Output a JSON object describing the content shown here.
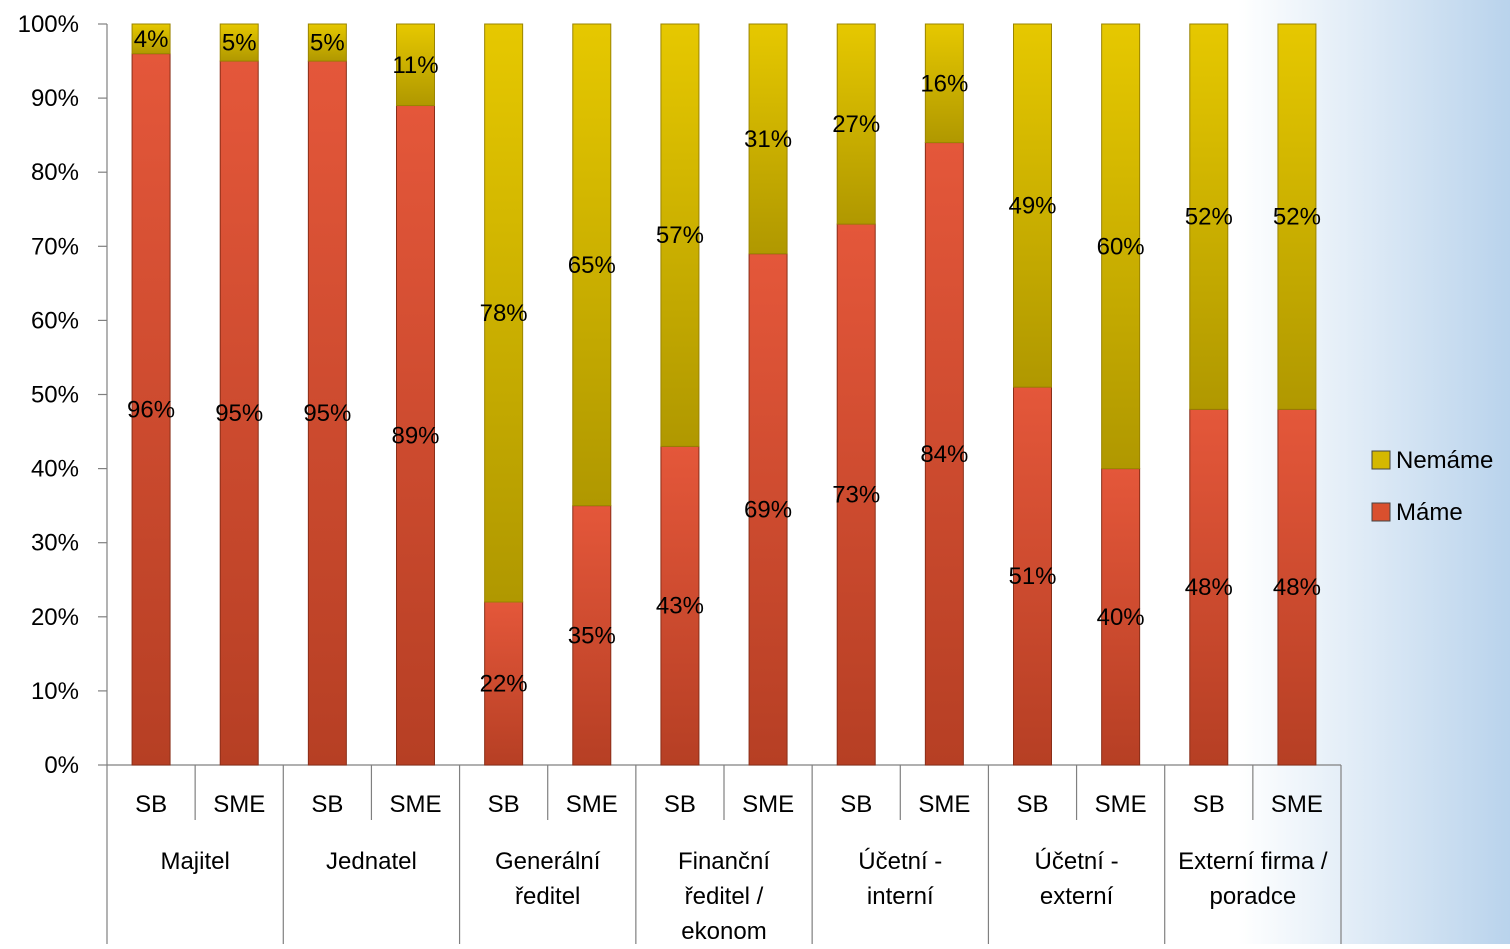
{
  "chart_data": {
    "type": "bar",
    "stacked": true,
    "groups": [
      {
        "label_lines": [
          "Majitel"
        ]
      },
      {
        "label_lines": [
          "Jednatel"
        ]
      },
      {
        "label_lines": [
          "Generální",
          "ředitel"
        ]
      },
      {
        "label_lines": [
          "Finanční",
          "ředitel /",
          "ekonom"
        ]
      },
      {
        "label_lines": [
          "Účetní -",
          "interní"
        ]
      },
      {
        "label_lines": [
          "Účetní -",
          "externí"
        ]
      },
      {
        "label_lines": [
          "Externí firma /",
          "poradce"
        ]
      }
    ],
    "subcategories": [
      "SB",
      "SME"
    ],
    "series": [
      {
        "name": "Máme",
        "color": "#d9502e",
        "values": [
          96,
          95,
          95,
          89,
          22,
          35,
          43,
          69,
          73,
          84,
          51,
          40,
          48,
          48
        ],
        "labels": [
          "96%",
          "95%",
          "95%",
          "89%",
          "22%",
          "35%",
          "43%",
          "69%",
          "73%",
          "84%",
          "51%",
          "40%",
          "48%",
          "48%"
        ]
      },
      {
        "name": "Nemáme",
        "color": "#d4b800",
        "values": [
          4,
          5,
          5,
          11,
          78,
          65,
          57,
          31,
          27,
          16,
          49,
          60,
          52,
          52
        ],
        "labels": [
          "4%",
          "5%",
          "5%",
          "11%",
          "78%",
          "65%",
          "57%",
          "31%",
          "27%",
          "16%",
          "49%",
          "60%",
          "52%",
          "52%"
        ]
      }
    ],
    "ylim": [
      0,
      100
    ],
    "yticks": [
      "0%",
      "10%",
      "20%",
      "30%",
      "40%",
      "50%",
      "60%",
      "70%",
      "80%",
      "90%",
      "100%"
    ],
    "grid": false,
    "legend_position": "right"
  }
}
